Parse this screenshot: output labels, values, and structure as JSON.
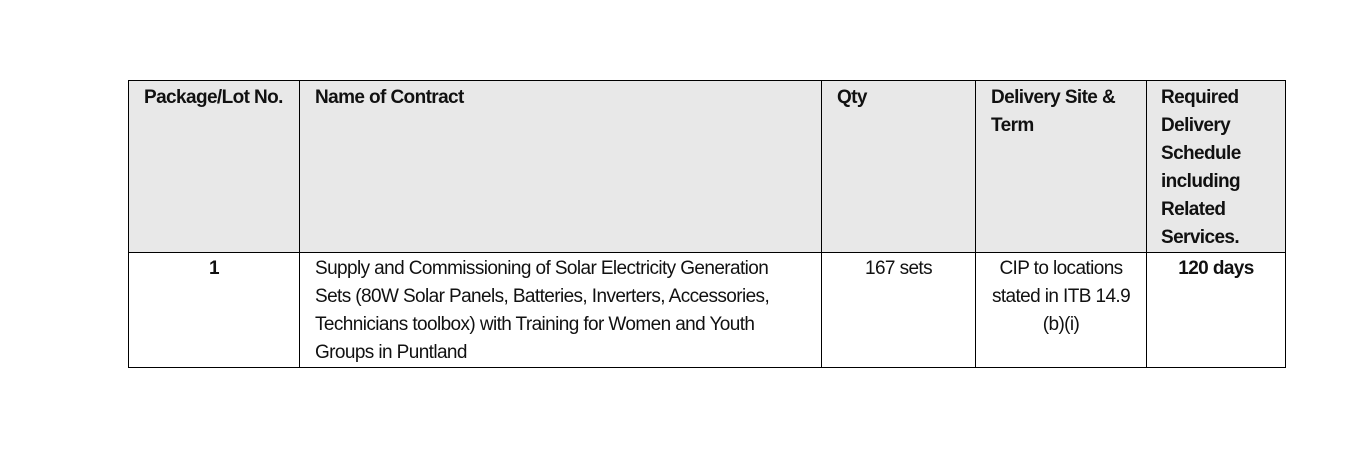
{
  "table": {
    "header": [
      "Package/Lot No.",
      "Name of Contract",
      "Qty",
      "Delivery Site & Term",
      "Required Delivery Schedule including Related Services."
    ],
    "rows": [
      [
        "1",
        "Supply and Commissioning of Solar Electricity Generation Sets (80W Solar Panels, Batteries, Inverters, Accessories, Technicians toolbox) with Training for Women and Youth Groups in Puntland",
        "167 sets",
        "CIP to locations stated in ITB 14.9 (b)(i)",
        "120 days"
      ]
    ]
  }
}
